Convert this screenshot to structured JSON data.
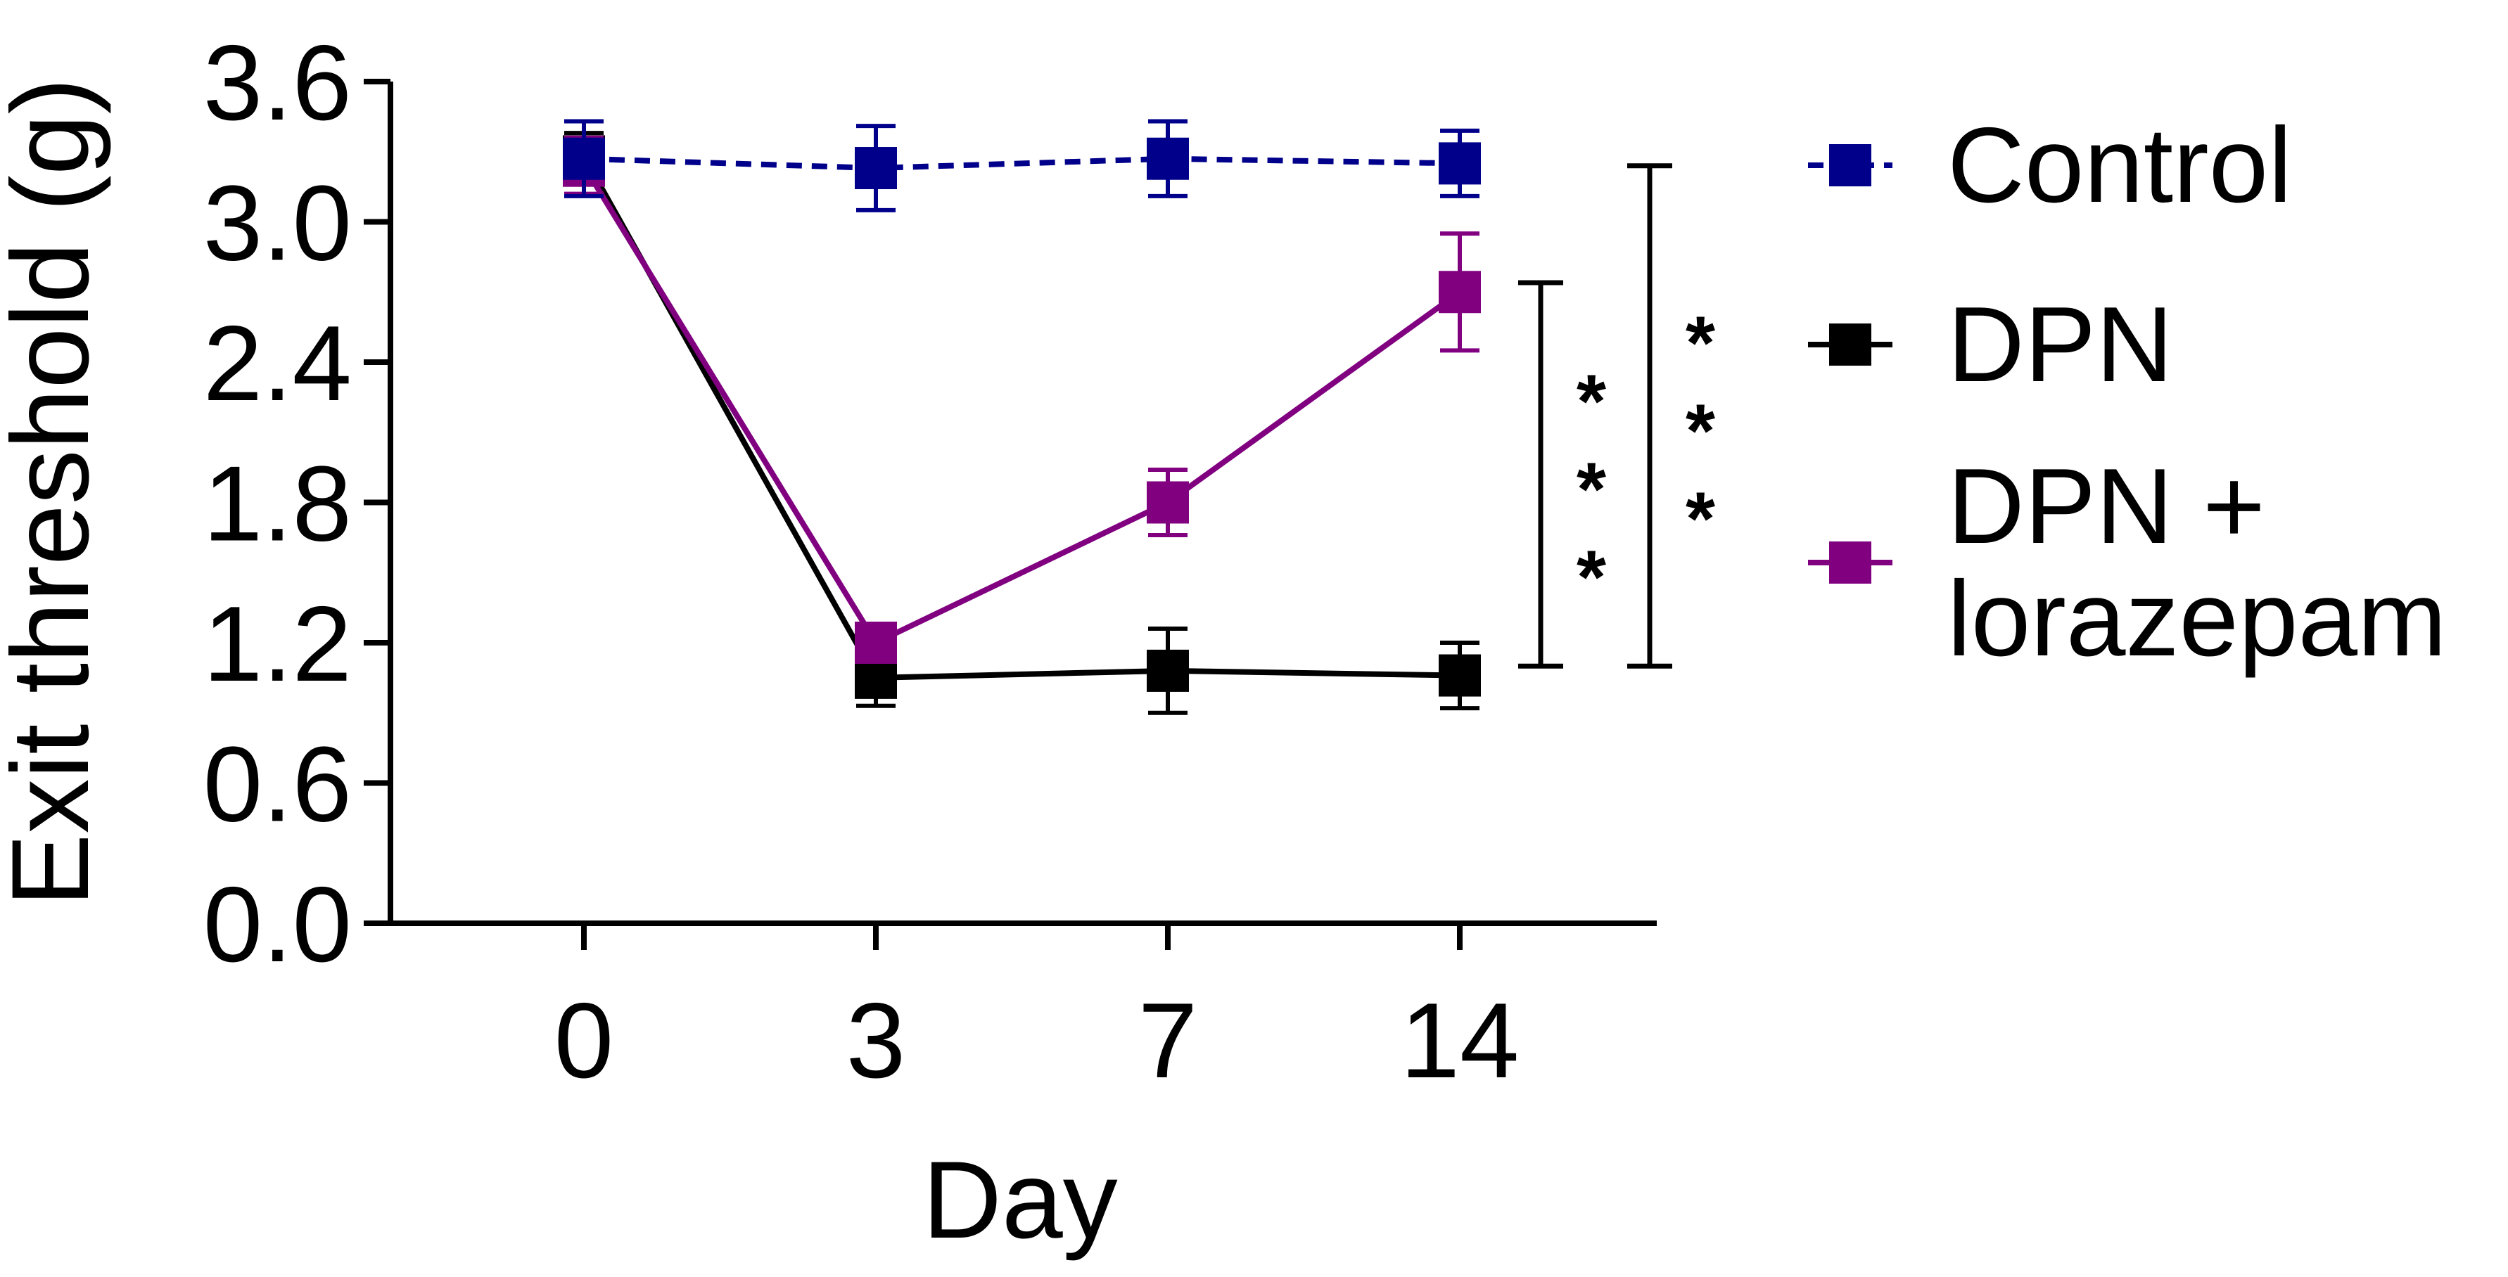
{
  "chart_data": {
    "type": "line",
    "xlabel": "Day",
    "ylabel": "Exit threshold (g)",
    "categories": [
      "0",
      "3",
      "7",
      "14"
    ],
    "ylim": [
      0,
      3.6
    ],
    "yticks": [
      "0.0",
      "0.6",
      "1.2",
      "1.8",
      "2.4",
      "3.0",
      "3.6"
    ],
    "legend_position": "right",
    "series": [
      {
        "name": "Control",
        "color": "#00008b",
        "dashed": true,
        "marker": "square",
        "values": [
          3.27,
          3.23,
          3.27,
          3.25
        ],
        "errors": [
          0.16,
          0.18,
          0.16,
          0.14
        ]
      },
      {
        "name": "DPN",
        "color": "#000000",
        "dashed": false,
        "marker": "square",
        "values": [
          3.28,
          1.05,
          1.08,
          1.06
        ],
        "errors": [
          0.1,
          0.12,
          0.18,
          0.14
        ]
      },
      {
        "name": "DPN + lorazepam",
        "legend_lines": [
          "DPN +",
          "lorazepam"
        ],
        "color": "#800080",
        "dashed": false,
        "marker": "square",
        "values": [
          3.24,
          1.2,
          1.8,
          2.7
        ],
        "errors": [
          0.12,
          0.06,
          0.14,
          0.25
        ]
      }
    ],
    "significance": [
      {
        "label": "***",
        "y_top": 2.74,
        "y_bottom": 1.1
      },
      {
        "label": "***",
        "y_top": 3.24,
        "y_bottom": 1.1
      }
    ]
  }
}
